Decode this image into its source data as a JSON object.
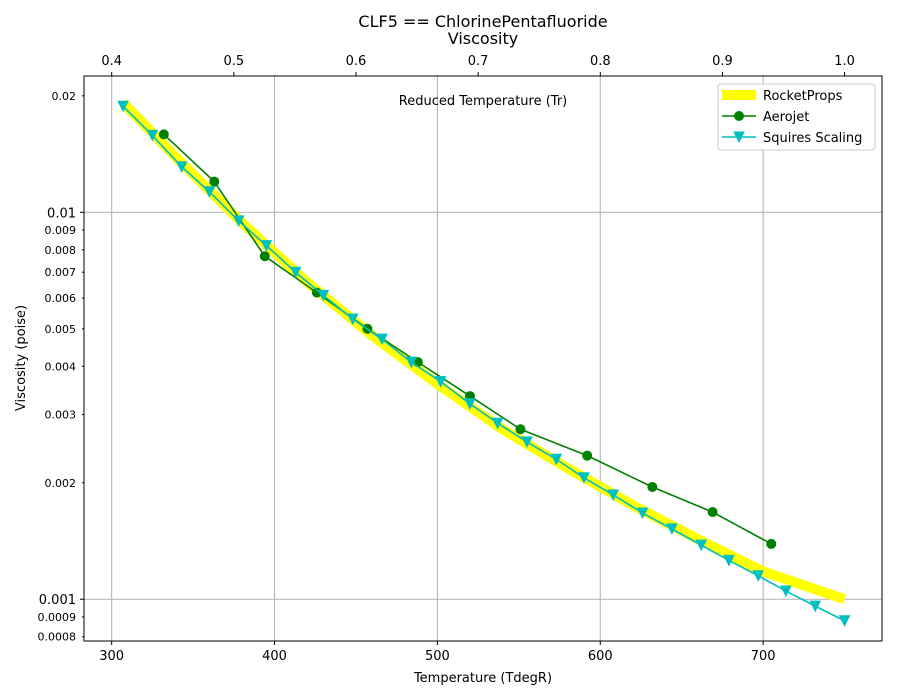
{
  "chart_data": {
    "type": "line",
    "title": "CLF5 == ChlorinePentafluoride",
    "subtitle": "Viscosity",
    "xlabel": "Temperature (TdegR)",
    "ylabel": "Viscosity (poise)",
    "x2label": "Reduced Temperature (Tr)",
    "xlim": [
      283,
      773
    ],
    "ylim": [
      0.00078,
      0.0225
    ],
    "yscale": "log",
    "grid": true,
    "legend_position": "top-right",
    "x_ticks": [
      300,
      400,
      500,
      600,
      700
    ],
    "x_tick_labels": [
      "300",
      "400",
      "500",
      "600",
      "700"
    ],
    "x2_ticks": [
      0.4,
      0.5,
      0.6,
      0.7,
      0.8,
      0.9,
      1.0
    ],
    "x2_tick_labels": [
      "0.4",
      "0.5",
      "0.6",
      "0.7",
      "0.8",
      "0.9",
      "1.0"
    ],
    "x2_per_x": 0.0013333,
    "y_major_ticks": [
      0.001,
      0.01
    ],
    "y_major_labels": [
      "0.001",
      "0.01"
    ],
    "y_minor_ticks": [
      0.0008,
      0.0009,
      0.002,
      0.003,
      0.004,
      0.005,
      0.006,
      0.007,
      0.008,
      0.009,
      0.02
    ],
    "y_minor_labels": [
      "0.0008",
      "0.0009",
      "0.002",
      "0.003",
      "0.004",
      "0.005",
      "0.006",
      "0.007",
      "0.008",
      "0.009",
      "0.02"
    ],
    "series": [
      {
        "name": "RocketProps",
        "color": "#ffff00",
        "marker": "none",
        "x": [
          307,
          340,
          380,
          420,
          460,
          500,
          540,
          580,
          620,
          660,
          700,
          750
        ],
        "y": [
          0.0192,
          0.0138,
          0.0094,
          0.0066,
          0.0048,
          0.0036,
          0.00275,
          0.00218,
          0.00175,
          0.00143,
          0.00118,
          0.001
        ]
      },
      {
        "name": "Aerojet",
        "color": "#008000",
        "marker": "circle",
        "x": [
          332,
          363,
          394,
          426,
          457,
          488,
          520,
          551,
          592,
          632,
          669,
          705
        ],
        "y": [
          0.0159,
          0.012,
          0.0077,
          0.0062,
          0.005,
          0.0041,
          0.00335,
          0.00275,
          0.00235,
          0.00195,
          0.00168,
          0.00139
        ]
      },
      {
        "name": "Squires Scaling",
        "color": "#00bfbf",
        "marker": "triangle-down",
        "x": [
          307,
          325,
          343,
          360,
          378,
          395,
          413,
          430,
          448,
          466,
          484,
          502,
          520,
          537,
          555,
          573,
          590,
          608,
          626,
          644,
          662,
          679,
          697,
          714,
          732,
          750
        ],
        "y": [
          0.0188,
          0.0158,
          0.0131,
          0.0113,
          0.0095,
          0.0082,
          0.007,
          0.0061,
          0.0053,
          0.0047,
          0.0041,
          0.00365,
          0.0032,
          0.00285,
          0.00255,
          0.0023,
          0.00206,
          0.00186,
          0.00167,
          0.00152,
          0.00138,
          0.00126,
          0.00115,
          0.00105,
          0.00096,
          0.00088
        ]
      }
    ]
  }
}
